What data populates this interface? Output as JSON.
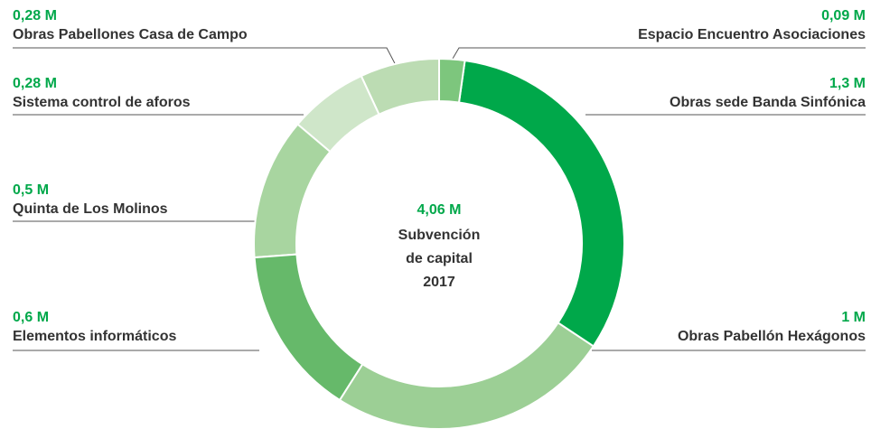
{
  "chart_data": {
    "type": "pie",
    "categories": [
      "Espacio Encuentro Asociaciones",
      "Obras sede Banda Sinfónica",
      "Obras Pabellón Hexágonos",
      "Elementos informáticos",
      "Quinta de Los Molinos",
      "Sistema control de aforos",
      "Obras Pabellones Casa de Campo"
    ],
    "values": [
      0.09,
      1.3,
      1,
      0.6,
      0.5,
      0.28,
      0.28
    ],
    "value_labels": [
      "0,09 M",
      "1,3 M",
      "1 M",
      "0,6 M",
      "0,5 M",
      "0,28 M",
      "0,28 M"
    ],
    "colors": [
      "#7dc67d",
      "#00a84a",
      "#9ccf95",
      "#66b96a",
      "#a8d5a0",
      "#cfe6c9",
      "#bcdcb3"
    ],
    "center_value": "4,06 M",
    "center_text": [
      "Subvención",
      "de capital",
      "2017"
    ]
  }
}
